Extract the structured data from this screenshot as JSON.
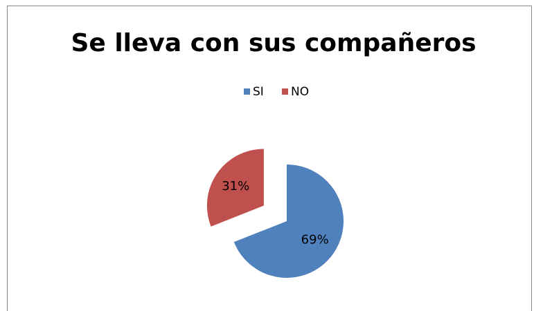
{
  "chart_data": {
    "type": "pie",
    "title": "Se lleva con sus compañeros",
    "categories": [
      "SI",
      "NO"
    ],
    "values": [
      69,
      31
    ],
    "value_labels": [
      "69%",
      "31%"
    ],
    "colors": [
      "#4f81bd",
      "#c0504d"
    ],
    "exploded": [
      false,
      true
    ],
    "legend": "top"
  }
}
